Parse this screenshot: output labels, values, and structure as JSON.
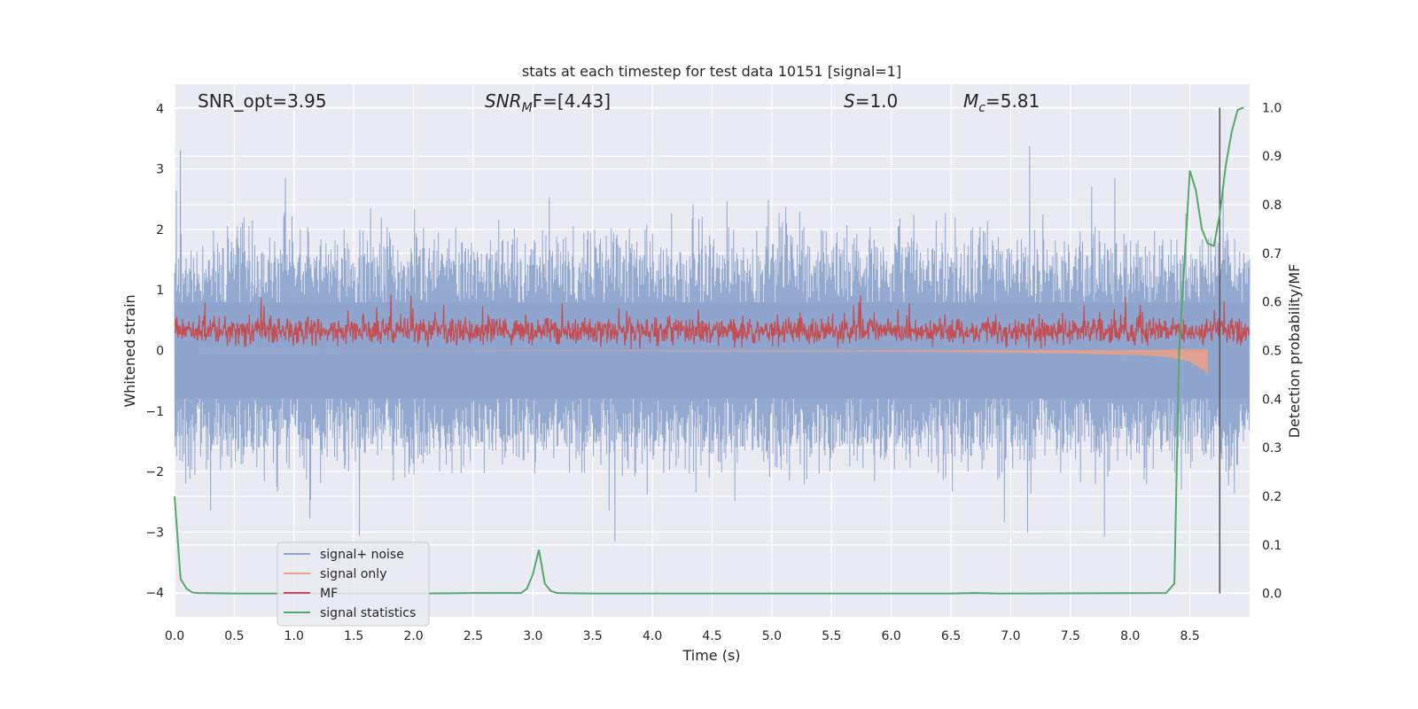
{
  "chart_data": {
    "type": "line",
    "title": "stats at each timestep for test data 10151 [signal=1]",
    "xlabel": "Time (s)",
    "ylabel": "Whitened strain",
    "ylabel_right": "Detection probability/MF",
    "xlim": [
      0.0,
      9.0
    ],
    "ylim": [
      -4.4,
      4.4
    ],
    "ylim_right": [
      -0.048,
      1.048
    ],
    "xticks": [
      "0.0",
      "0.5",
      "1.0",
      "1.5",
      "2.0",
      "2.5",
      "3.0",
      "3.5",
      "4.0",
      "4.5",
      "5.0",
      "5.5",
      "6.0",
      "6.5",
      "7.0",
      "7.5",
      "8.0",
      "8.5"
    ],
    "yticks_left": [
      "4",
      "3",
      "2",
      "1",
      "0",
      "−1",
      "−2",
      "−3",
      "−4"
    ],
    "yticks_right": [
      "1.0",
      "0.9",
      "0.8",
      "0.7",
      "0.6",
      "0.5",
      "0.4",
      "0.3",
      "0.2",
      "0.1",
      "0.0"
    ],
    "annotations": {
      "snr_opt": "SNR_opt=3.95",
      "snr_mf_main": "SNR",
      "snr_mf_sub": "M",
      "snr_mf_rest": "F=[4.43]",
      "s_sym": "S",
      "s_val": "=1.0",
      "mc_main": "M",
      "mc_sub": "c",
      "mc_val": "=5.81"
    },
    "vline_x": 8.75,
    "series": [
      {
        "name": "signal+ noise",
        "color": "#8fa5ce",
        "description": "whitened strain noise, amplitude ~±1.6, peaks to ~±3.5"
      },
      {
        "name": "signal only",
        "color": "#e8a08a",
        "x": [
          0.0,
          2.0,
          4.0,
          5.5,
          6.5,
          7.5,
          8.0,
          8.3,
          8.5,
          8.65
        ],
        "values": [
          0.0,
          -0.005,
          -0.01,
          -0.015,
          -0.025,
          -0.05,
          -0.07,
          -0.1,
          -0.18,
          -0.38
        ]
      },
      {
        "name": "MF",
        "color": "#c44e52",
        "description": "matched filter output, ~0.05 to 0.75 with peaks ~0.95"
      },
      {
        "name": "signal statistics",
        "color": "#55a868",
        "x": [
          0.0,
          0.05,
          0.1,
          0.15,
          0.2,
          0.5,
          1.0,
          2.0,
          2.5,
          2.9,
          2.95,
          3.0,
          3.05,
          3.1,
          3.15,
          3.2,
          3.5,
          6.5,
          6.7,
          6.9,
          8.3,
          8.37,
          8.41,
          8.5,
          8.55,
          8.6,
          8.65,
          8.7,
          8.75,
          8.8,
          8.85,
          8.9,
          8.95
        ],
        "values": [
          0.2,
          0.03,
          0.01,
          0.002,
          0.001,
          0.0,
          0.0,
          0.0,
          0.001,
          0.001,
          0.01,
          0.04,
          0.09,
          0.02,
          0.005,
          0.001,
          0.0,
          0.0,
          0.001,
          0.0,
          0.001,
          0.02,
          0.5,
          0.87,
          0.83,
          0.75,
          0.72,
          0.715,
          0.78,
          0.88,
          0.95,
          0.995,
          1.0
        ]
      }
    ]
  }
}
